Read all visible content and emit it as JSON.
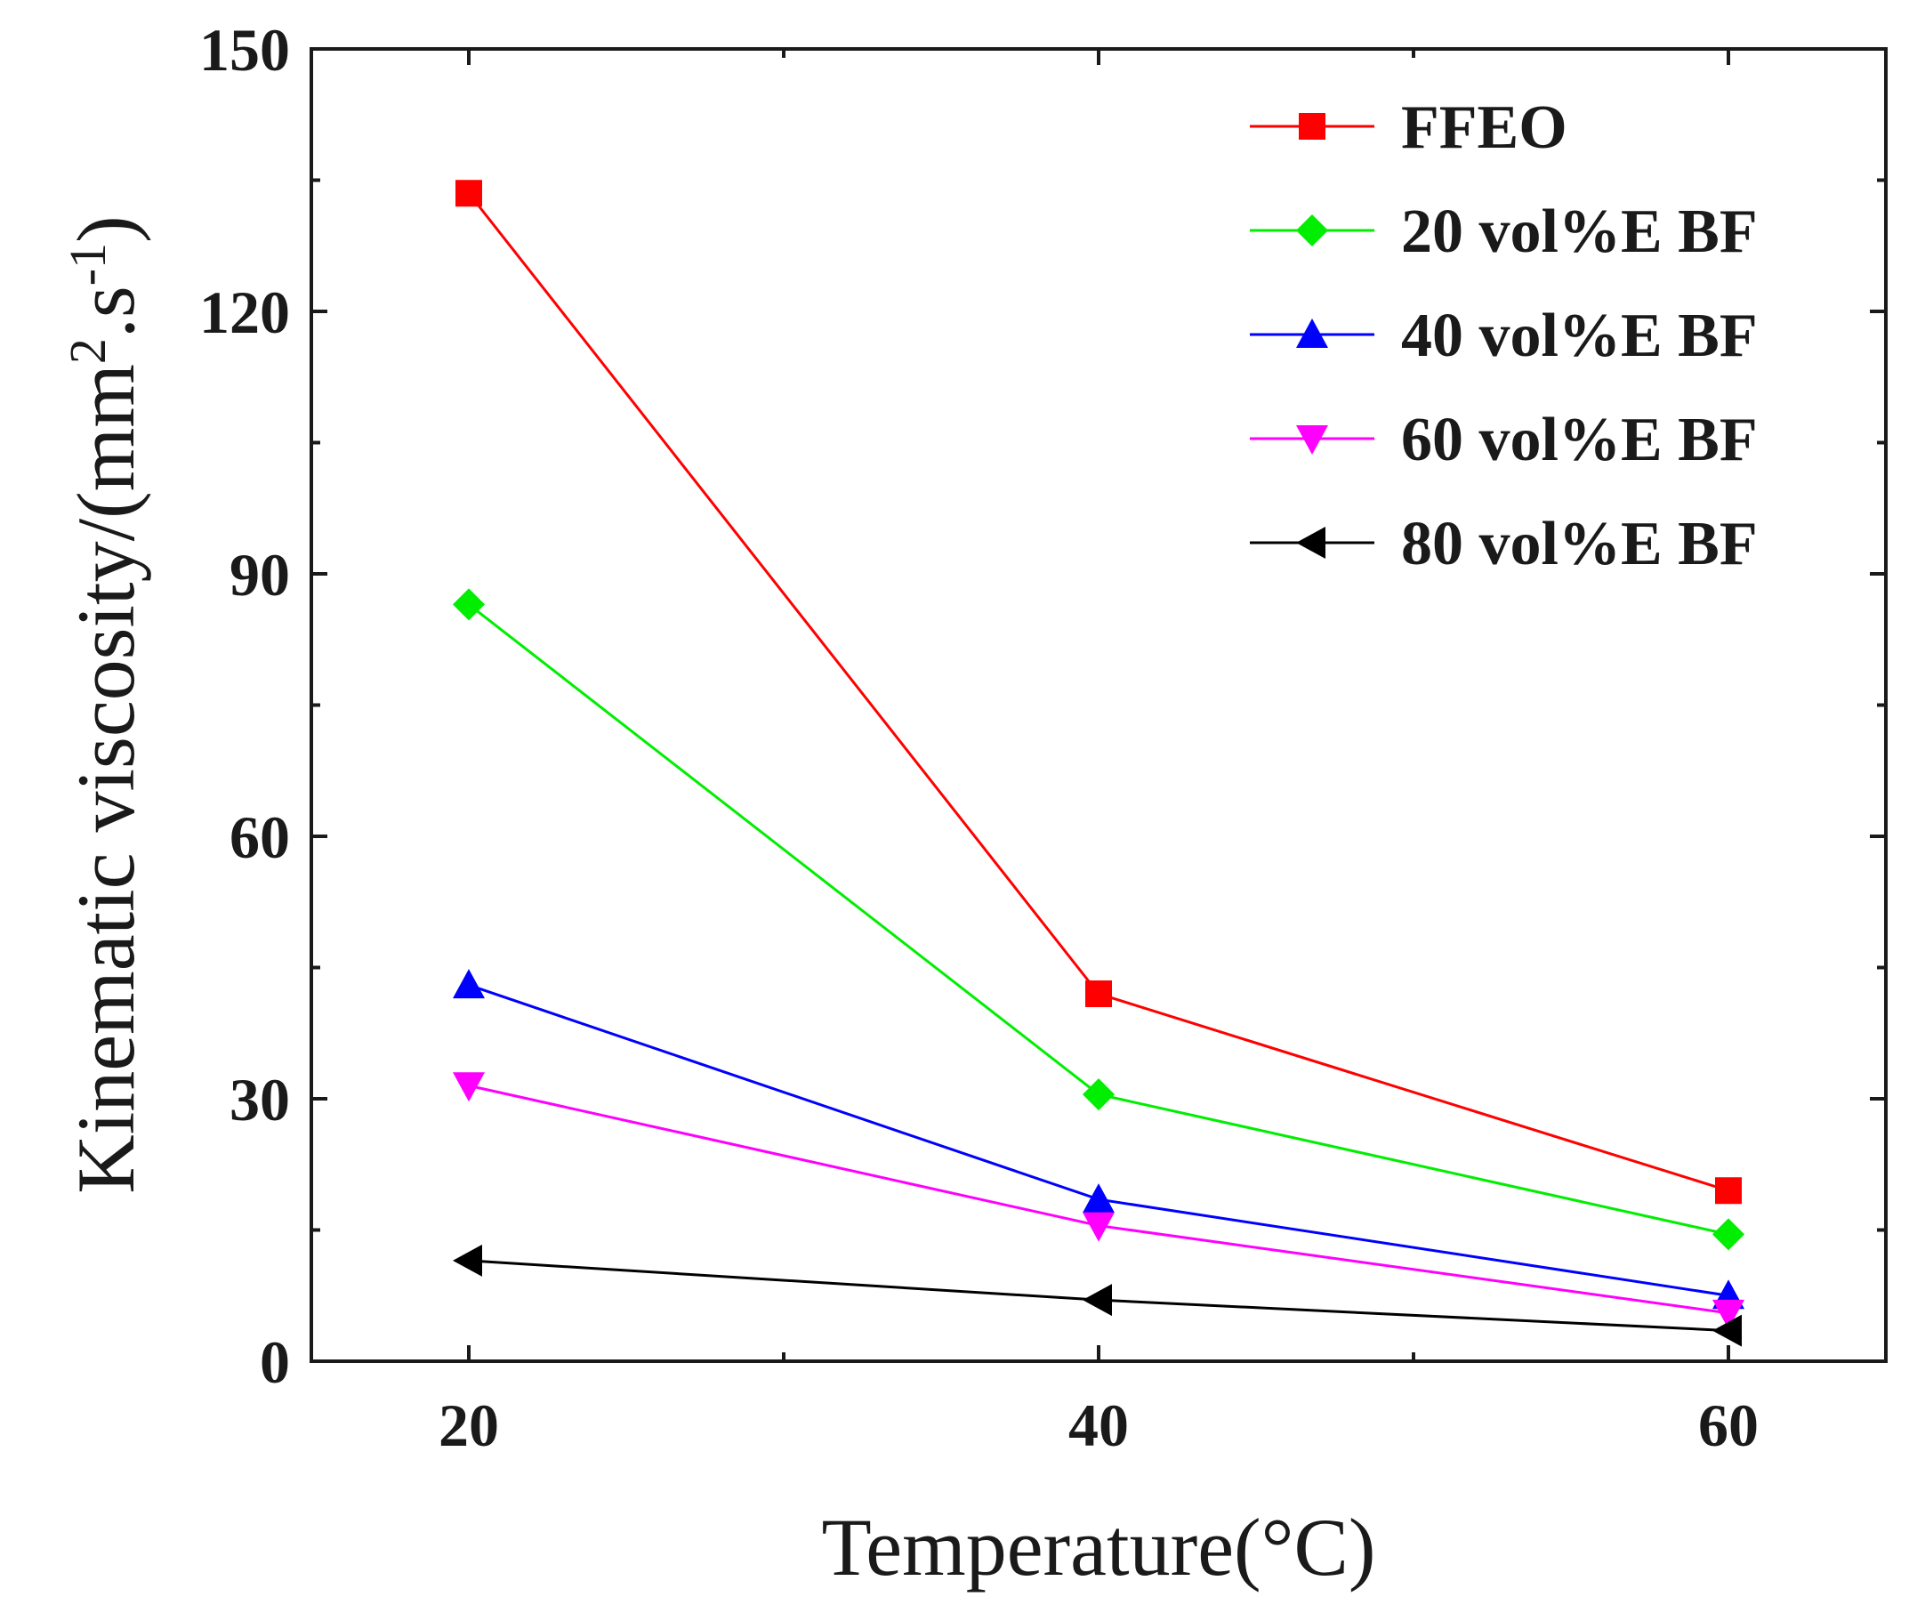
{
  "chart_data": {
    "type": "line",
    "title": "",
    "xlabel": "Temperature(°C)",
    "ylabel": {
      "prefix": "Kinematic viscosity/(mm",
      "sup1": "2",
      "middle": ".s",
      "sup2": "-1",
      "suffix": ")"
    },
    "x": [
      20,
      40,
      60
    ],
    "xlim": [
      15,
      65
    ],
    "ylim": [
      0,
      150
    ],
    "xticks": [
      20,
      40,
      60
    ],
    "xminor": [
      30,
      50
    ],
    "yticks": [
      0,
      30,
      60,
      90,
      120,
      150
    ],
    "grid": false,
    "legend_position": "top-right",
    "series": [
      {
        "name": "FFEO",
        "color": "#ff0000",
        "marker": "square",
        "values": [
          133.5,
          42,
          19.5
        ]
      },
      {
        "name": "20 vol%E BF",
        "color": "#00ee00",
        "marker": "diamond",
        "values": [
          86.5,
          30.5,
          14.5
        ]
      },
      {
        "name": "40 vol%E BF",
        "color": "#0000ff",
        "marker": "triangle-up",
        "values": [
          43,
          18.5,
          7.5
        ]
      },
      {
        "name": "60 vol%E BF",
        "color": "#ff00ff",
        "marker": "triangle-down",
        "values": [
          31.5,
          15.5,
          5.5
        ]
      },
      {
        "name": "80 vol%E BF",
        "color": "#000000",
        "marker": "triangle-left",
        "values": [
          11.5,
          7,
          3.5
        ]
      }
    ]
  }
}
